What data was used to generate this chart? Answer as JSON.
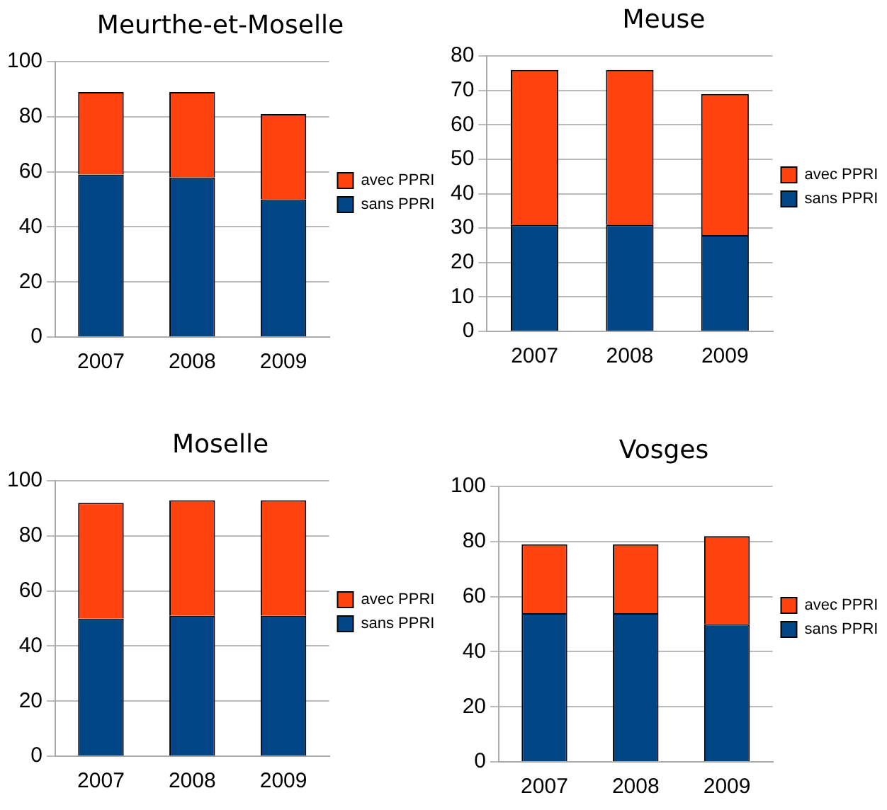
{
  "chart_data": [
    {
      "type": "bar",
      "title": "Meurthe-et-Moselle",
      "categories": [
        "2007",
        "2008",
        "2009"
      ],
      "stacked": true,
      "ylim": [
        0,
        100
      ],
      "yticks": [
        0,
        20,
        40,
        60,
        80,
        100
      ],
      "grid": "y",
      "legend": "right",
      "series": [
        {
          "name": "sans PPRI",
          "color": "#004586",
          "values": [
            59,
            58,
            50
          ]
        },
        {
          "name": "avec PPRI",
          "color": "#ff420e",
          "values": [
            30,
            31,
            31
          ]
        }
      ]
    },
    {
      "type": "bar",
      "title": "Meuse",
      "categories": [
        "2007",
        "2008",
        "2009"
      ],
      "stacked": true,
      "ylim": [
        0,
        80
      ],
      "yticks": [
        0,
        10,
        20,
        30,
        40,
        50,
        60,
        70,
        80
      ],
      "grid": "y",
      "legend": "right",
      "series": [
        {
          "name": "sans PPRI",
          "color": "#004586",
          "values": [
            31,
            31,
            28
          ]
        },
        {
          "name": "avec PPRI",
          "color": "#ff420e",
          "values": [
            45,
            45,
            41
          ]
        }
      ]
    },
    {
      "type": "bar",
      "title": "Moselle",
      "categories": [
        "2007",
        "2008",
        "2009"
      ],
      "stacked": true,
      "ylim": [
        0,
        100
      ],
      "yticks": [
        0,
        20,
        40,
        60,
        80,
        100
      ],
      "grid": "y",
      "legend": "right",
      "series": [
        {
          "name": "sans PPRI",
          "color": "#004586",
          "values": [
            50,
            51,
            51
          ]
        },
        {
          "name": "avec PPRI",
          "color": "#ff420e",
          "values": [
            42,
            42,
            42
          ]
        }
      ]
    },
    {
      "type": "bar",
      "title": "Vosges",
      "categories": [
        "2007",
        "2008",
        "2009"
      ],
      "stacked": true,
      "ylim": [
        0,
        100
      ],
      "yticks": [
        0,
        20,
        40,
        60,
        80,
        100
      ],
      "grid": "y",
      "legend": "right",
      "series": [
        {
          "name": "sans PPRI",
          "color": "#004586",
          "values": [
            54,
            54,
            50
          ]
        },
        {
          "name": "avec PPRI",
          "color": "#ff420e",
          "values": [
            25,
            25,
            32
          ]
        }
      ]
    }
  ]
}
